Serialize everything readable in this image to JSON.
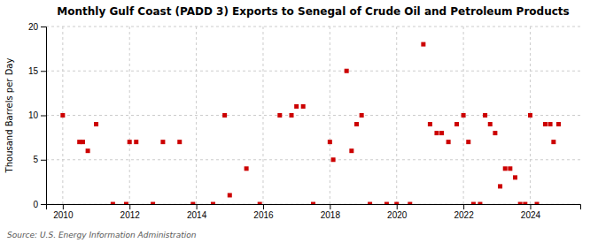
{
  "chart_data": {
    "type": "scatter",
    "title": "Monthly Gulf Coast (PADD 3) Exports to Senegal of Crude Oil and Petroleum Products",
    "ylabel": "Thousand Barrels per Day",
    "source": "Source: U.S. Energy Information Administration",
    "color": "#cc0000",
    "marker": "square",
    "grid": true,
    "xlim": [
      2009.5,
      2025.5
    ],
    "xticks": [
      2010,
      2012,
      2014,
      2016,
      2018,
      2020,
      2022,
      2024
    ],
    "ylim": [
      0,
      20
    ],
    "yticks": [
      0,
      5,
      10,
      15,
      20
    ],
    "x": [
      2010.0,
      2010.5,
      2010.6,
      2010.75,
      2011.0,
      2011.5,
      2011.9,
      2012.0,
      2012.2,
      2012.7,
      2013.0,
      2013.5,
      2013.9,
      2014.5,
      2014.85,
      2015.0,
      2015.5,
      2015.9,
      2016.5,
      2016.85,
      2017.0,
      2017.2,
      2017.5,
      2018.0,
      2018.1,
      2018.5,
      2018.65,
      2018.8,
      2018.95,
      2019.2,
      2019.7,
      2020.0,
      2020.4,
      2020.8,
      2021.0,
      2021.2,
      2021.35,
      2021.55,
      2021.8,
      2022.0,
      2022.15,
      2022.3,
      2022.5,
      2022.65,
      2022.8,
      2022.95,
      2023.1,
      2023.25,
      2023.4,
      2023.55,
      2023.7,
      2023.85,
      2024.0,
      2024.2,
      2024.45,
      2024.6,
      2024.7,
      2024.85
    ],
    "values": [
      10.0,
      7.0,
      7.0,
      6.0,
      9.0,
      0.0,
      0.0,
      7.0,
      7.0,
      0.0,
      7.0,
      7.0,
      0.0,
      0.0,
      10.0,
      1.0,
      4.0,
      0.0,
      10.0,
      10.0,
      11.0,
      11.0,
      0.0,
      7.0,
      5.0,
      15.0,
      6.0,
      9.0,
      10.0,
      0.0,
      0.0,
      0.0,
      0.0,
      18.0,
      9.0,
      8.0,
      8.0,
      7.0,
      9.0,
      10.0,
      7.0,
      0.0,
      0.0,
      10.0,
      9.0,
      8.0,
      2.0,
      4.0,
      4.0,
      3.0,
      0.0,
      0.0,
      10.0,
      0.0,
      9.0,
      9.0,
      7.0,
      9.0
    ]
  }
}
